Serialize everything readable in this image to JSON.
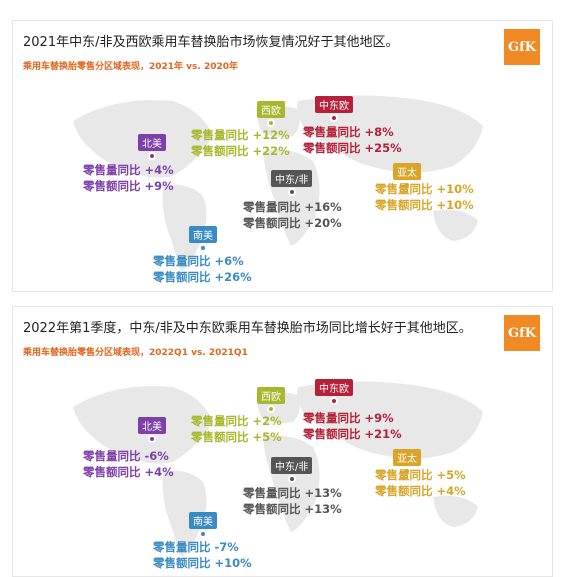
{
  "panels": [
    {
      "headline": "2021年中东/非及西欧乘用车替换胎市场恢复情况好于其他地区。",
      "subtitle": "乘用车替换胎零售分区域表现，2021年 vs. 2020年",
      "logo": "GfK",
      "regions": {
        "na": {
          "name": "北美",
          "volume": "零售量同比 +4%",
          "value": "零售额同比 +9%"
        },
        "we": {
          "name": "西欧",
          "volume": "零售量同比 +12%",
          "value": "零售额同比 +22%"
        },
        "ce": {
          "name": "中东欧",
          "volume": "零售量同比 +8%",
          "value": "零售额同比 +25%"
        },
        "mea": {
          "name": "中东/非",
          "volume": "零售量同比 +16%",
          "value": "零售额同比 +20%"
        },
        "ap": {
          "name": "亚太",
          "volume": "零售量同比 +10%",
          "value": "零售额同比 +10%"
        },
        "sa": {
          "name": "南美",
          "volume": "零售量同比 +6%",
          "value": "零售额同比 +26%"
        }
      }
    },
    {
      "headline": "2022年第1季度，中东/非及中东欧乘用车替换胎市场同比增长好于其他地区。",
      "subtitle": "乘用车替换胎零售分区域表现，2022Q1 vs. 2021Q1",
      "logo": "GfK",
      "regions": {
        "na": {
          "name": "北美",
          "volume": "零售量同比 -6%",
          "value": "零售额同比 +4%"
        },
        "we": {
          "name": "西欧",
          "volume": "零售量同比 +2%",
          "value": "零售额同比 +5%"
        },
        "ce": {
          "name": "中东欧",
          "volume": "零售量同比 +9%",
          "value": "零售额同比 +21%"
        },
        "mea": {
          "name": "中东/非",
          "volume": "零售量同比 +13%",
          "value": "零售额同比 +13%"
        },
        "ap": {
          "name": "亚太",
          "volume": "零售量同比 +5%",
          "value": "零售额同比 +4%"
        },
        "sa": {
          "name": "南美",
          "volume": "零售量同比 -7%",
          "value": "零售额同比 +10%"
        }
      }
    }
  ],
  "colors": {
    "na": "#7d3fa8",
    "we": "#a8b82c",
    "ce": "#b5213a",
    "mea": "#555555",
    "ap": "#d8a529",
    "sa": "#3a8bc4",
    "map_land": "#e8e8e8",
    "subtitle": "#e0661f",
    "logo_bg": "#f08a24"
  }
}
